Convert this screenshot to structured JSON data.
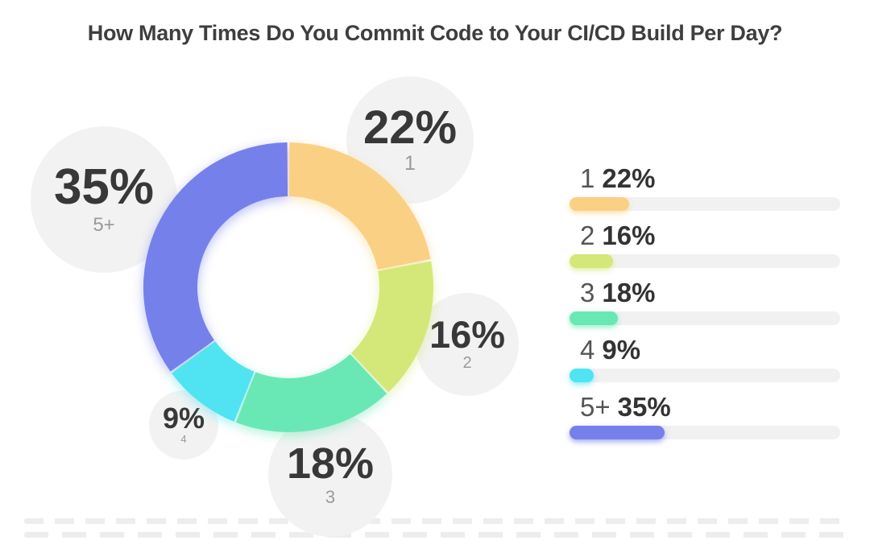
{
  "chart_data": {
    "type": "pie",
    "subtype": "donut",
    "title": "How Many Times Do You Commit Code to Your CI/CD Build Per Day?",
    "unit": "%",
    "start_angle_deg": 0,
    "direction": "clockwise",
    "legend_position": "right",
    "categories": [
      "1",
      "2",
      "3",
      "4",
      "5+"
    ],
    "values": [
      22,
      16,
      18,
      9,
      35
    ],
    "display_values": [
      "22%",
      "16%",
      "18%",
      "9%",
      "35%"
    ],
    "colors": [
      "#fad184",
      "#d3e878",
      "#69e8b5",
      "#50e3f2",
      "#7680eb"
    ],
    "legend_track_color": "#f1f1f2",
    "callout_circle_color": "#f2f2f2",
    "title_color": "#3e3e3e",
    "value_text_color": "#383838",
    "category_text_color": "#9a9a9a"
  }
}
